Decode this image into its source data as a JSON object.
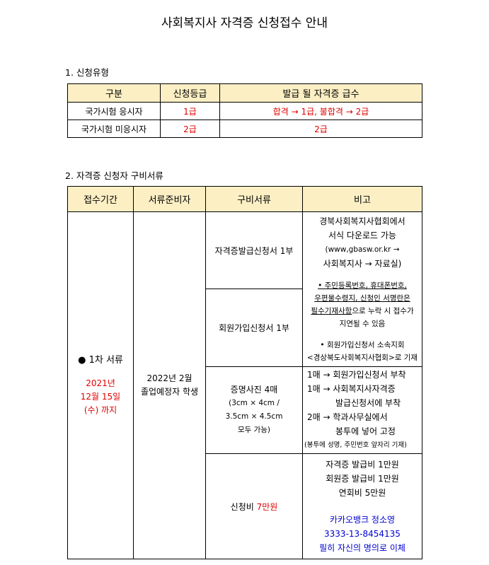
{
  "title": "사회복지사 자격증 신청접수 안내",
  "section1": {
    "heading": "1. 신청유형",
    "headers": [
      "구분",
      "신청등급",
      "발급 될 자격증 급수"
    ],
    "rows": [
      [
        "국가시험 응시자",
        "1급",
        "합격 → 1급, 불합격 → 2급"
      ],
      [
        "국가시험 미응시자",
        "2급",
        "2급"
      ]
    ]
  },
  "section2": {
    "heading": "2. 자격증 신청자 구비서류",
    "headers": [
      "접수기간",
      "서류준비자",
      "구비서류",
      "비고"
    ],
    "period": {
      "label": "● 1차 서류",
      "date1": "2021년",
      "date2": "12월 15일",
      "date3": "(수) 까지"
    },
    "preparer": {
      "line1": "2022년 2월",
      "line2": "졸업예정자 학생"
    },
    "docs": [
      {
        "text": "자격증발급신청서 1부"
      },
      {
        "text": "회원가입신청서 1부"
      },
      {
        "lines": [
          "증명사진 4매",
          "(3cm × 4cm /",
          "3.5cm × 4.5cm",
          "모두 가능)"
        ]
      },
      {
        "text": "신청비 ",
        "highlight": "7만원"
      }
    ],
    "note1": {
      "lines": [
        "경북사회복지사협회에서",
        "서식 다운로드 가능",
        "(www,gbasw.or.kr →",
        "사회복지사 → 자료실)"
      ],
      "bullet1_u1": "• 주민등록번호, 휴대폰번호,",
      "bullet1_u2": "우편물수령지, 신청인 서명란은",
      "bullet1_u3": "필수기재사항",
      "bullet1_rest": "으로 누락 시 접수가",
      "bullet1_end": "지연될 수 있음",
      "bullet2": [
        "• 회원가입신청서 소속지회",
        "<경상북도사회복지사협회>로 기재"
      ]
    },
    "note2": {
      "lines": [
        "1매 → 회원가입신청서 부착",
        "1매 → 사회복지사자격증",
        "발급신청서에 부착",
        "2매 → 학과사무실에서",
        "봉투에 넣어 고정"
      ],
      "small": "(봉투에 성명, 주민번호 앞자리 기재)"
    },
    "note3": {
      "lines": [
        "자격증 발급비 1만원",
        "회원증 발급비 1만원",
        "연회비 5만원"
      ],
      "blue": [
        "카카오뱅크 정소영",
        "3333-13-8454135",
        "필히 자신의 명의로 이체"
      ]
    }
  },
  "colors": {
    "header_bg": "#fcefc4",
    "red": "#e00000",
    "blue": "#0000d0"
  }
}
